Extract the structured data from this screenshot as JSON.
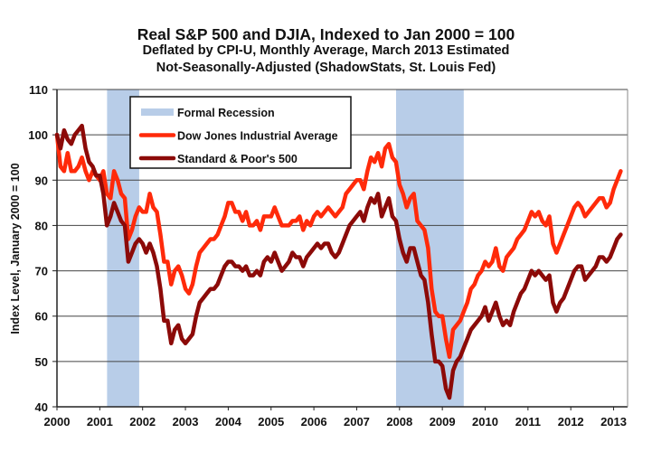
{
  "chart_data": {
    "type": "line",
    "title": "Real S&P 500 and DJIA, Indexed to Jan 2000 = 100",
    "subtitle_lines": [
      "Deflated by CPI-U, Monthly Average, March 2013 Estimated",
      "Not-Seasonally-Adjusted (ShadowStats, St. Louis Fed)"
    ],
    "xlabel": "",
    "ylabel": "Index Level, January 2000 = 100",
    "xlim": [
      2000,
      2013.25
    ],
    "ylim": [
      40,
      110
    ],
    "x_ticks": [
      "2000",
      "2001",
      "2002",
      "2003",
      "2004",
      "2005",
      "2006",
      "2007",
      "2008",
      "2009",
      "2010",
      "2011",
      "2012",
      "2013"
    ],
    "y_ticks": [
      "40",
      "50",
      "60",
      "70",
      "80",
      "90",
      "100",
      "110"
    ],
    "grid": "horizontal",
    "x_start": "2000-01",
    "x_frequency": "monthly",
    "recessions": [
      {
        "label": "Formal Recession",
        "start": 2001.17,
        "end": 2001.92
      },
      {
        "label": "Formal Recession",
        "start": 2007.92,
        "end": 2009.5
      }
    ],
    "legend": {
      "position": "top-left",
      "entries": [
        {
          "label": "Formal Recession",
          "kind": "band",
          "color": "#b8cde8"
        },
        {
          "label": "Dow Jones Industrial Average",
          "kind": "line",
          "color": "#ff2a0a"
        },
        {
          "label": "Standard & Poor's 500",
          "kind": "line",
          "color": "#8c0a08"
        }
      ]
    },
    "series": [
      {
        "name": "Dow Jones Industrial Average",
        "color": "#ff2a0a",
        "values": [
          100,
          93,
          92,
          96,
          92,
          92,
          93,
          95,
          92,
          90,
          92,
          91,
          90,
          92,
          87,
          86,
          92,
          90,
          87,
          86,
          77,
          79,
          82,
          84,
          83,
          83,
          87,
          84,
          83,
          78,
          72,
          72,
          67,
          70,
          71,
          69,
          66,
          65,
          67,
          71,
          74,
          75,
          76,
          77,
          77,
          78,
          80,
          82,
          85,
          85,
          83,
          83,
          81,
          83,
          80,
          80,
          81,
          79,
          82,
          82,
          82,
          84,
          82,
          80,
          80,
          80,
          81,
          81,
          82,
          79,
          81,
          80,
          82,
          83,
          82,
          83,
          84,
          83,
          82,
          83,
          84,
          87,
          88,
          89,
          90,
          90,
          88,
          92,
          95,
          94,
          96,
          93,
          97,
          98,
          95,
          94,
          89,
          87,
          84,
          86,
          87,
          81,
          80,
          79,
          75,
          66,
          61,
          60,
          60,
          55,
          51,
          57,
          58,
          59,
          61,
          63,
          66,
          67,
          69,
          70,
          72,
          71,
          72,
          75,
          71,
          70,
          73,
          74,
          75,
          77,
          78,
          79,
          81,
          83,
          82,
          83,
          81,
          80,
          82,
          76,
          74,
          76,
          78,
          80,
          82,
          84,
          85,
          84,
          82,
          83,
          84,
          85,
          86,
          86,
          84,
          85,
          88,
          90,
          92
        ]
      },
      {
        "name": "Standard & Poor's 500",
        "color": "#8c0a08",
        "values": [
          100,
          97,
          101,
          99,
          98,
          100,
          101,
          102,
          97,
          94,
          93,
          91,
          91,
          87,
          80,
          82,
          85,
          83,
          81,
          80,
          72,
          74,
          76,
          77,
          76,
          74,
          76,
          74,
          71,
          66,
          59,
          59,
          54,
          57,
          58,
          55,
          54,
          55,
          56,
          60,
          63,
          64,
          65,
          66,
          66,
          67,
          69,
          71,
          72,
          72,
          71,
          71,
          70,
          71,
          69,
          69,
          70,
          69,
          72,
          73,
          72,
          74,
          72,
          70,
          71,
          72,
          74,
          73,
          73,
          71,
          73,
          74,
          75,
          76,
          75,
          76,
          76,
          74,
          73,
          74,
          76,
          78,
          80,
          81,
          82,
          83,
          81,
          84,
          86,
          85,
          87,
          82,
          84,
          86,
          82,
          81,
          77,
          74,
          72,
          75,
          75,
          72,
          69,
          68,
          63,
          56,
          50,
          50,
          49,
          44,
          42,
          48,
          50,
          51,
          53,
          55,
          57,
          58,
          59,
          60,
          62,
          59,
          61,
          63,
          60,
          58,
          59,
          58,
          61,
          63,
          65,
          66,
          68,
          70,
          69,
          70,
          69,
          68,
          69,
          63,
          61,
          63,
          64,
          66,
          68,
          70,
          71,
          71,
          68,
          69,
          70,
          71,
          73,
          73,
          72,
          73,
          75,
          77,
          78
        ]
      }
    ]
  }
}
